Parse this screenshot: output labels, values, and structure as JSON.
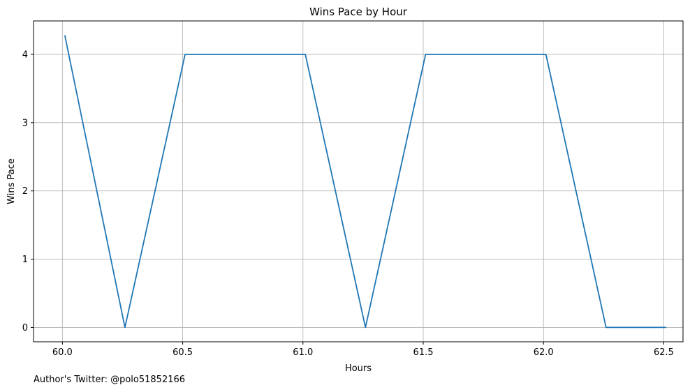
{
  "chart_data": {
    "type": "line",
    "title": "Wins Pace by Hour",
    "xlabel": "Hours",
    "ylabel": "Wins Pace",
    "xlim": [
      59.88,
      62.58
    ],
    "ylim": [
      -0.21,
      4.49
    ],
    "xticks": [
      60.0,
      60.5,
      61.0,
      61.5,
      62.0,
      62.5
    ],
    "xtick_labels": [
      "60.0",
      "60.5",
      "61.0",
      "61.5",
      "62.0",
      "62.5"
    ],
    "yticks": [
      0,
      1,
      2,
      3,
      4
    ],
    "ytick_labels": [
      "0",
      "1",
      "2",
      "3",
      "4"
    ],
    "grid": true,
    "series": [
      {
        "color": "#1f77b4",
        "x": [
          60.01,
          60.26,
          60.51,
          61.01,
          61.26,
          61.51,
          62.01,
          62.26,
          62.51
        ],
        "y": [
          4.28,
          0,
          4,
          4,
          0,
          4,
          4,
          0,
          0
        ]
      }
    ]
  },
  "footer": {
    "author": "Author's Twitter: @polo51852166"
  }
}
